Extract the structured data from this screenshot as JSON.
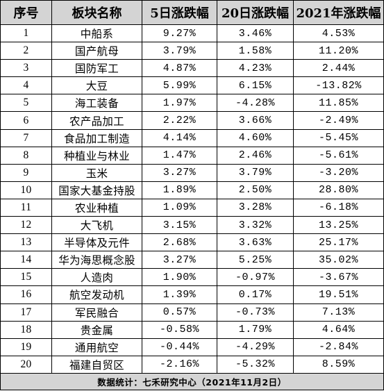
{
  "table": {
    "headers": [
      "序号",
      "板块名称",
      "5日涨跌幅",
      "20日涨跌幅",
      "2021年涨跌幅"
    ],
    "rows": [
      [
        "1",
        "中船系",
        "9.27%",
        "3.46%",
        "4.53%"
      ],
      [
        "2",
        "国产航母",
        "3.79%",
        "1.58%",
        "11.20%"
      ],
      [
        "3",
        "国防军工",
        "4.87%",
        "4.23%",
        "2.44%"
      ],
      [
        "4",
        "大豆",
        "5.99%",
        "6.15%",
        "-13.82%"
      ],
      [
        "5",
        "海工装备",
        "1.97%",
        "-4.28%",
        "11.85%"
      ],
      [
        "6",
        "农产品加工",
        "2.22%",
        "3.66%",
        "-2.49%"
      ],
      [
        "7",
        "食品加工制造",
        "4.14%",
        "4.60%",
        "-5.45%"
      ],
      [
        "8",
        "种植业与林业",
        "1.47%",
        "2.46%",
        "-5.61%"
      ],
      [
        "9",
        "玉米",
        "3.27%",
        "3.79%",
        "-3.20%"
      ],
      [
        "10",
        "国家大基金持股",
        "1.89%",
        "2.50%",
        "28.80%"
      ],
      [
        "11",
        "农业种植",
        "1.09%",
        "3.28%",
        "-6.18%"
      ],
      [
        "12",
        "大飞机",
        "3.15%",
        "3.32%",
        "13.25%"
      ],
      [
        "13",
        "半导体及元件",
        "2.68%",
        "3.63%",
        "25.17%"
      ],
      [
        "14",
        "华为海思概念股",
        "3.27%",
        "5.25%",
        "35.02%"
      ],
      [
        "15",
        "人造肉",
        "1.90%",
        "-0.97%",
        "-3.67%"
      ],
      [
        "16",
        "航空发动机",
        "1.39%",
        "0.17%",
        "19.51%"
      ],
      [
        "17",
        "军民融合",
        "0.57%",
        "-0.73%",
        "7.13%"
      ],
      [
        "18",
        "贵金属",
        "-0.58%",
        "1.79%",
        "4.64%"
      ],
      [
        "19",
        "通用航空",
        "-0.44%",
        "-4.29%",
        "-2.84%"
      ],
      [
        "20",
        "福建自贸区",
        "-2.16%",
        "-5.32%",
        "8.59%"
      ]
    ],
    "footer": "数据统计：七禾研究中心（2021年11月2日）"
  }
}
